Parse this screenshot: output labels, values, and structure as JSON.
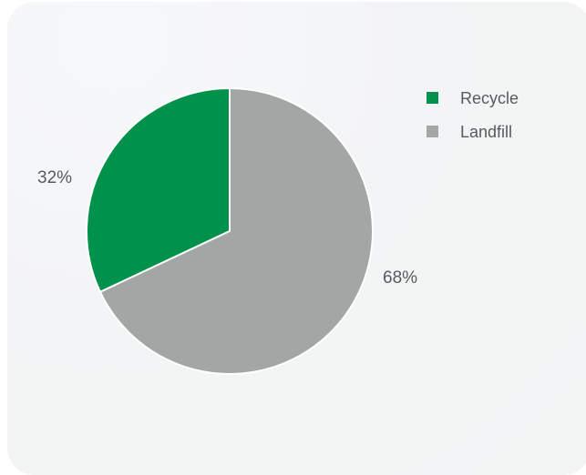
{
  "chart_data": {
    "type": "pie",
    "slices": [
      {
        "label": "Recycle",
        "value": 32,
        "display": "32%",
        "color": "#00924a"
      },
      {
        "label": "Landfill",
        "value": 68,
        "display": "68%",
        "color": "#a2a6a5"
      }
    ],
    "legend_placement": "top-right",
    "slice_border_color": "#ffffff"
  },
  "legend": {
    "items": [
      {
        "label": "Recycle",
        "color": "#00924a"
      },
      {
        "label": "Landfill",
        "color": "#a2a6a5"
      }
    ]
  }
}
